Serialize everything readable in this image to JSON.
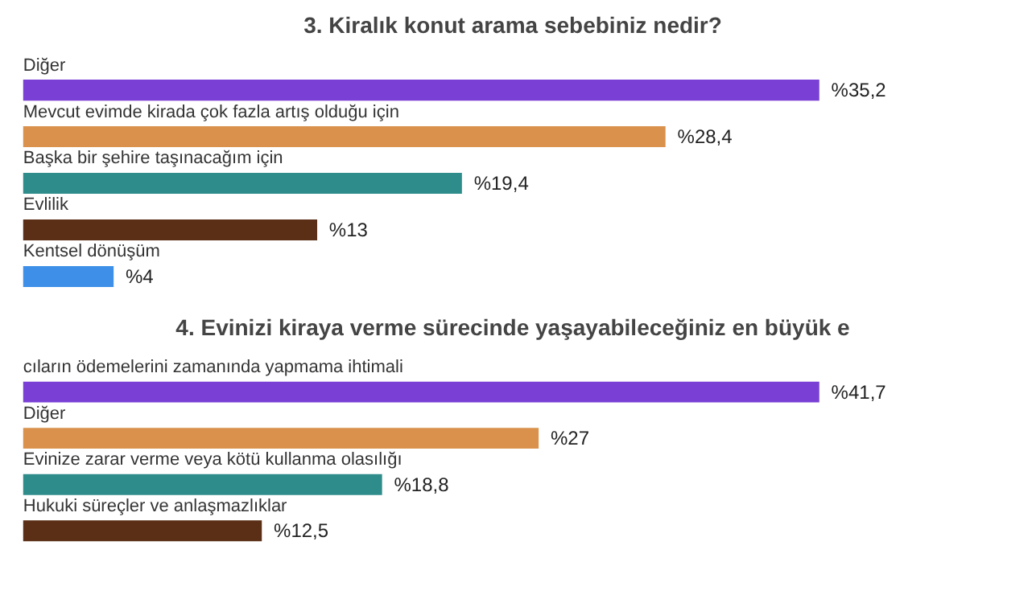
{
  "chart_data": [
    {
      "type": "bar",
      "orientation": "horizontal",
      "title": "3. Kiralık konut arama sebebiniz nedir?",
      "categories": [
        "Diğer",
        "Mevcut evimde kirada çok fazla artış olduğu için",
        "Başka bir şehire taşınacağım için",
        "Evlilik",
        "Kentsel dönüşüm"
      ],
      "values": [
        35.2,
        28.4,
        19.4,
        13,
        4
      ],
      "colors": [
        "#7a3fd4",
        "#d9914c",
        "#2e8c8a",
        "#5b2f16",
        "#3d8fe8"
      ],
      "value_labels": [
        "%35,2",
        "%28,4",
        "%19,4",
        "%13",
        "%4"
      ]
    },
    {
      "type": "bar",
      "orientation": "horizontal",
      "title": "4. Evinizi kiraya verme sürecinde yaşayabileceğiniz en büyük e",
      "categories": [
        "cıların ödemelerini zamanında yapmama ihtimali",
        "Diğer",
        "Evinize zarar verme veya kötü kullanma olasılığı",
        "Hukuki süreçler ve anlaşmazlıklar"
      ],
      "values": [
        41.7,
        27,
        18.8,
        12.5
      ],
      "colors": [
        "#7a3fd4",
        "#d9914c",
        "#2e8c8a",
        "#5b2f16"
      ],
      "value_labels": [
        "%41,7",
        "%27",
        "%18,8",
        "%12,5"
      ]
    }
  ]
}
